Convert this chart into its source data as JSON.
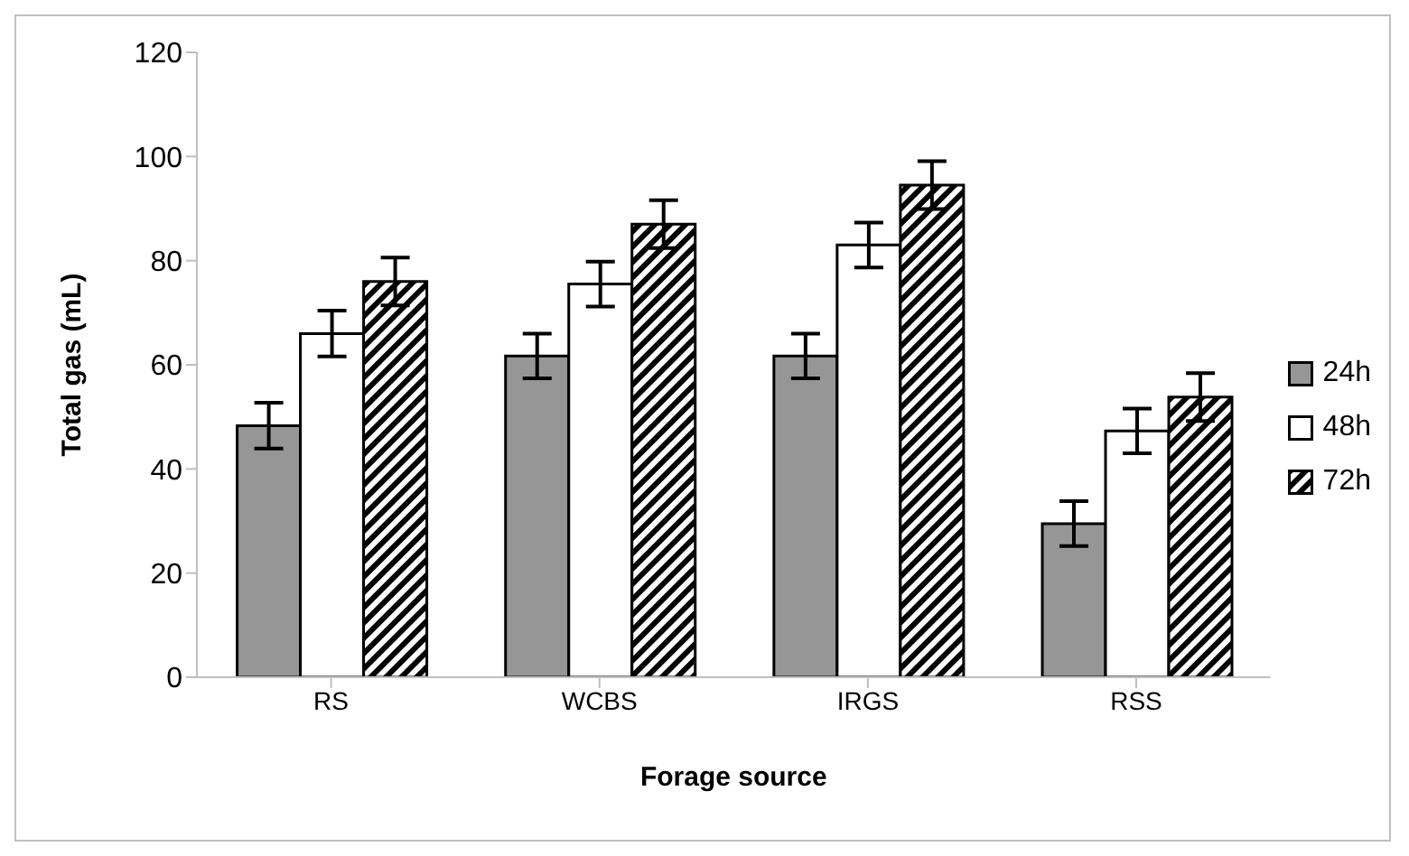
{
  "chart_data": {
    "type": "bar",
    "xlabel": "Forage source",
    "ylabel": "Total gas (mL)",
    "categories": [
      "RS",
      "WCBS",
      "IRGS",
      "RSS"
    ],
    "series": [
      {
        "name": "24h",
        "color": "#969696",
        "values": [
          48.3,
          61.7,
          61.7,
          29.5
        ],
        "errors": [
          4.4,
          4.3,
          4.3,
          4.3
        ]
      },
      {
        "name": "48h",
        "color": "#ffffff",
        "values": [
          66,
          75.5,
          83,
          47.3
        ],
        "errors": [
          4.4,
          4.3,
          4.3,
          4.3
        ]
      },
      {
        "name": "72h",
        "color": "#000000",
        "values": [
          76,
          87,
          94.5,
          53.8
        ],
        "errors": [
          4.6,
          4.6,
          4.6,
          4.6
        ]
      }
    ],
    "ylim": [
      0,
      120
    ],
    "yticks": [
      0,
      20,
      40,
      60,
      80,
      100,
      120
    ],
    "grid": false,
    "legend": "right"
  }
}
